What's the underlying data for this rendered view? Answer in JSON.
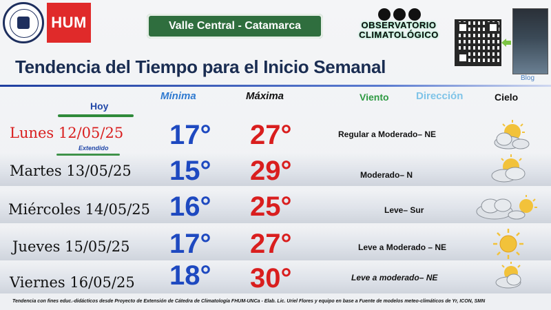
{
  "header": {
    "hum_logo": "HUM",
    "location": "Valle Central - Catamarca",
    "observatory": "OBSERVATORIO\nCLIMATOLÓGICO",
    "blog_label": "Blog",
    "university_seal": "UNIVERSIDAD NACIONAL DE CATAMARCA"
  },
  "title": "Tendencia del Tiempo para el Inicio Semanal",
  "columns": {
    "min": "Mínima",
    "max": "Máxima",
    "wind": "Viento",
    "direction": "Dirección",
    "sky": "Cielo"
  },
  "today_label": "Hoy",
  "extended_label": "Extendido",
  "days": [
    {
      "day": "Lunes 12/05/25",
      "min": "17°",
      "max": "27°",
      "wind": "Regular a Moderado–  NE",
      "sky_icon": "sun-behind-cloud-icon",
      "color": "#d91e1e"
    },
    {
      "day": "Martes 13/05/25",
      "min": "15°",
      "max": "29°",
      "wind": "Moderado–  N",
      "sky_icon": "sun-behind-cloud-icon",
      "color": "#111111"
    },
    {
      "day": "Miércoles 14/05/25",
      "min": "16°",
      "max": "25°",
      "wind": "Leve– Sur",
      "sky_icon": "clouds-with-sun-icon",
      "color": "#111111"
    },
    {
      "day": "Jueves   15/05/25",
      "min": "17°",
      "max": "27°",
      "wind": "Leve a Moderado – NE",
      "sky_icon": "sun-icon",
      "color": "#111111"
    },
    {
      "day": "Viernes 16/05/25",
      "min": "18°",
      "max": "30°",
      "wind": "Leve a moderado– NE",
      "sky_icon": "sun-behind-cloud-icon",
      "color": "#111111"
    }
  ],
  "footer": "Tendencia con fines educ.-didácticos desde Proyecto de Extensión de Cátedra de Climatología FHUM-UNCa    -  Elab. Lic. Uriel Flores y equipo en base a  Fuente de modelos meteo-climáticos de Yr, ICON, SMN",
  "colors": {
    "title": "#1a2d52",
    "min": "#1e49c0",
    "max": "#d91e1e",
    "location_bg": "#2f6e3e",
    "hum_bg": "#e02a2a"
  }
}
